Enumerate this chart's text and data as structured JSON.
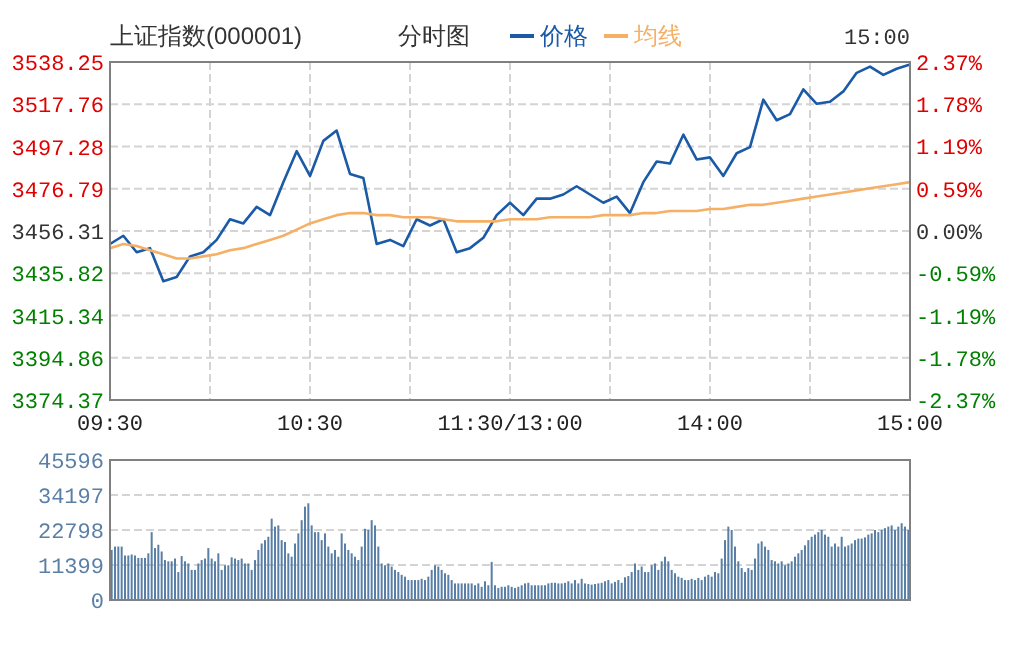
{
  "chart_data": [
    {
      "type": "line",
      "title": "上证指数(000001)",
      "subtitle": "分时图",
      "annotations": [
        "15:00"
      ],
      "legend": "top",
      "marker": "none",
      "grid": true,
      "categories": [
        "09:30",
        null,
        null,
        null,
        null,
        null,
        null,
        null,
        null,
        null,
        null,
        null,
        null,
        null,
        null,
        "10:30",
        null,
        null,
        null,
        null,
        null,
        null,
        null,
        null,
        null,
        null,
        null,
        null,
        null,
        null,
        "11:30/13:00",
        null,
        null,
        null,
        null,
        null,
        null,
        null,
        null,
        null,
        null,
        null,
        null,
        null,
        null,
        "14:00",
        null,
        null,
        null,
        null,
        null,
        null,
        null,
        null,
        null,
        null,
        null,
        null,
        null,
        null,
        "15:00"
      ],
      "ylim": [
        3374.37,
        3538.25
      ],
      "yticks": [
        3374.37,
        3394.86,
        3415.34,
        3435.82,
        3456.31,
        3476.79,
        3497.28,
        3517.76,
        3538.25
      ],
      "y2lim": [
        -2.37,
        2.37
      ],
      "y2ticks": [
        {
          "value": -2.37,
          "label": "-2.37%"
        },
        {
          "value": -1.78,
          "label": "-1.78%"
        },
        {
          "value": -1.19,
          "label": "-1.19%"
        },
        {
          "value": -0.59,
          "label": "-0.59%"
        },
        {
          "value": 0,
          "label": "0.00%"
        },
        {
          "value": 0.59,
          "label": "0.59%"
        },
        {
          "value": 1.19,
          "label": "1.19%"
        },
        {
          "value": 1.78,
          "label": "1.78%"
        },
        {
          "value": 2.37,
          "label": "2.37%"
        }
      ],
      "series": [
        {
          "name": "价格",
          "color": "#1a5aa6",
          "values": [
            3450,
            3454,
            3446,
            3448,
            3432,
            3434,
            3444,
            3446,
            3452,
            3462,
            3460,
            3468,
            3464,
            3480,
            3495,
            3483,
            3500,
            3505,
            3484,
            3482,
            3450,
            3452,
            3449,
            3462,
            3459,
            3462,
            3446,
            3448,
            3453,
            3464,
            3470,
            3464,
            3472,
            3472,
            3474,
            3478,
            3474,
            3470,
            3473,
            3465,
            3480,
            3490,
            3489,
            3503,
            3491,
            3492,
            3483,
            3494,
            3497,
            3520,
            3510,
            3513,
            3525,
            3518,
            3519,
            3524,
            3533,
            3536,
            3532,
            3535,
            3537
          ]
        },
        {
          "name": "均线",
          "color": "#f5b066",
          "values": [
            3448,
            3450,
            3449,
            3447,
            3445,
            3443,
            3443,
            3444,
            3445,
            3447,
            3448,
            3450,
            3452,
            3454,
            3457,
            3460,
            3462,
            3464,
            3465,
            3465,
            3464,
            3464,
            3463,
            3463,
            3463,
            3462,
            3461,
            3461,
            3461,
            3461,
            3462,
            3462,
            3462,
            3463,
            3463,
            3463,
            3463,
            3464,
            3464,
            3464,
            3465,
            3465,
            3466,
            3466,
            3466,
            3467,
            3467,
            3468,
            3469,
            3469,
            3470,
            3471,
            3472,
            3473,
            3474,
            3475,
            3476,
            3477,
            3478,
            3479,
            3480
          ]
        }
      ]
    },
    {
      "type": "bar",
      "grid": "y",
      "tick_labels": "y",
      "categories": [
        null,
        null,
        null,
        null,
        null,
        null,
        null,
        null,
        null,
        null,
        null,
        null,
        null,
        null,
        null,
        null,
        null,
        null,
        null,
        null,
        null,
        null,
        null,
        null,
        null,
        null,
        null,
        null,
        null,
        null,
        null,
        null,
        null,
        null,
        null,
        null,
        null,
        null,
        null,
        null,
        null,
        null,
        null,
        null,
        null,
        null,
        null,
        null,
        null,
        null,
        null,
        null,
        null,
        null,
        null,
        null,
        null,
        null,
        null,
        null,
        null,
        null,
        null,
        null,
        null,
        null,
        null,
        null,
        null,
        null,
        null,
        null,
        null,
        null,
        null,
        null,
        null,
        null,
        null,
        null,
        null,
        null,
        null,
        null,
        null,
        null,
        null,
        null,
        null,
        null,
        null,
        null,
        null,
        null,
        null,
        null,
        null,
        null,
        null,
        null,
        null,
        null,
        null,
        null,
        null,
        null,
        null,
        null,
        null,
        null,
        null,
        null,
        null,
        null,
        null,
        null,
        null,
        null,
        null,
        null,
        null,
        null,
        null,
        null,
        null,
        null,
        null,
        null,
        null,
        null,
        null,
        null,
        null,
        null,
        null,
        null,
        null,
        null,
        null,
        null,
        null,
        null,
        null,
        null,
        null,
        null,
        null,
        null,
        null,
        null,
        null,
        null,
        null,
        null,
        null,
        null,
        null,
        null,
        null,
        null,
        null,
        null,
        null,
        null,
        null,
        null,
        null,
        null,
        null,
        null,
        null,
        null,
        null,
        null,
        null,
        null,
        null,
        null,
        null,
        null,
        null,
        null,
        null,
        null,
        null,
        null,
        null,
        null,
        null,
        null,
        null,
        null,
        null,
        null,
        null,
        null,
        null,
        null,
        null,
        null,
        null,
        null,
        null,
        null,
        null,
        null,
        null,
        null,
        null,
        null,
        null,
        null,
        null,
        null,
        null,
        null,
        null,
        null,
        null,
        null,
        null,
        null,
        null,
        null,
        null,
        null,
        null,
        null,
        null,
        null,
        null,
        null,
        null,
        null,
        null,
        null,
        null,
        null,
        null,
        null
      ],
      "ylim": [
        0,
        45596
      ],
      "yticks": [
        0,
        11399,
        22798,
        34197,
        45596
      ],
      "series": [
        {
          "color": "#5a7fa6",
          "values": [
            16300,
            17400,
            17400,
            17400,
            14500,
            14500,
            14800,
            14500,
            13700,
            13700,
            13700,
            15200,
            22100,
            16900,
            18000,
            15800,
            13000,
            12600,
            12600,
            13500,
            9100,
            14300,
            12600,
            11900,
            9800,
            9800,
            11900,
            13000,
            13500,
            16900,
            13500,
            12600,
            15200,
            9800,
            11300,
            11300,
            13900,
            13500,
            13000,
            13500,
            11900,
            11900,
            9800,
            13000,
            16300,
            18400,
            19500,
            20600,
            26500,
            23900,
            24300,
            19500,
            18900,
            15200,
            14100,
            18400,
            21700,
            26000,
            30400,
            31500,
            24300,
            22100,
            22100,
            19500,
            21700,
            17400,
            15200,
            16300,
            14100,
            21700,
            18400,
            16300,
            15200,
            14100,
            13000,
            17400,
            23200,
            22800,
            26000,
            24300,
            17400,
            11900,
            11300,
            11900,
            10900,
            9800,
            9100,
            8200,
            7600,
            6500,
            6500,
            6500,
            6500,
            6900,
            6500,
            7600,
            9800,
            11300,
            10900,
            9800,
            8700,
            8200,
            6500,
            5400,
            5400,
            5400,
            5400,
            5400,
            5400,
            4800,
            5400,
            4300,
            6100,
            4800,
            12400,
            4800,
            3900,
            4300,
            4300,
            4800,
            4300,
            3900,
            4300,
            4800,
            5400,
            5600,
            4800,
            4800,
            4800,
            4800,
            4800,
            5400,
            5600,
            5600,
            5400,
            5400,
            5600,
            6100,
            5400,
            6500,
            5400,
            6900,
            5400,
            5200,
            5000,
            5200,
            5400,
            5600,
            6100,
            6500,
            5400,
            5900,
            6500,
            5600,
            7400,
            7800,
            9100,
            11900,
            9800,
            10900,
            9100,
            9100,
            11300,
            11900,
            9800,
            12600,
            14100,
            12600,
            9800,
            8700,
            7600,
            7200,
            6500,
            6500,
            6900,
            6500,
            7200,
            6500,
            7600,
            8200,
            7600,
            9100,
            8700,
            13500,
            19500,
            23900,
            22800,
            17400,
            12600,
            10400,
            9100,
            10400,
            9800,
            13500,
            18400,
            19100,
            17400,
            16300,
            13000,
            12600,
            11900,
            12600,
            11300,
            11900,
            12600,
            14100,
            15200,
            16300,
            17800,
            19500,
            20600,
            21300,
            22100,
            22800,
            21300,
            20600,
            17400,
            18400,
            17400,
            20600,
            17400,
            17800,
            18400,
            19500,
            20000,
            20000,
            20400,
            21300,
            21700,
            22800,
            22100,
            22800,
            23400,
            23900,
            24300,
            22800,
            23900,
            25000,
            23900,
            22800
          ]
        }
      ]
    }
  ]
}
